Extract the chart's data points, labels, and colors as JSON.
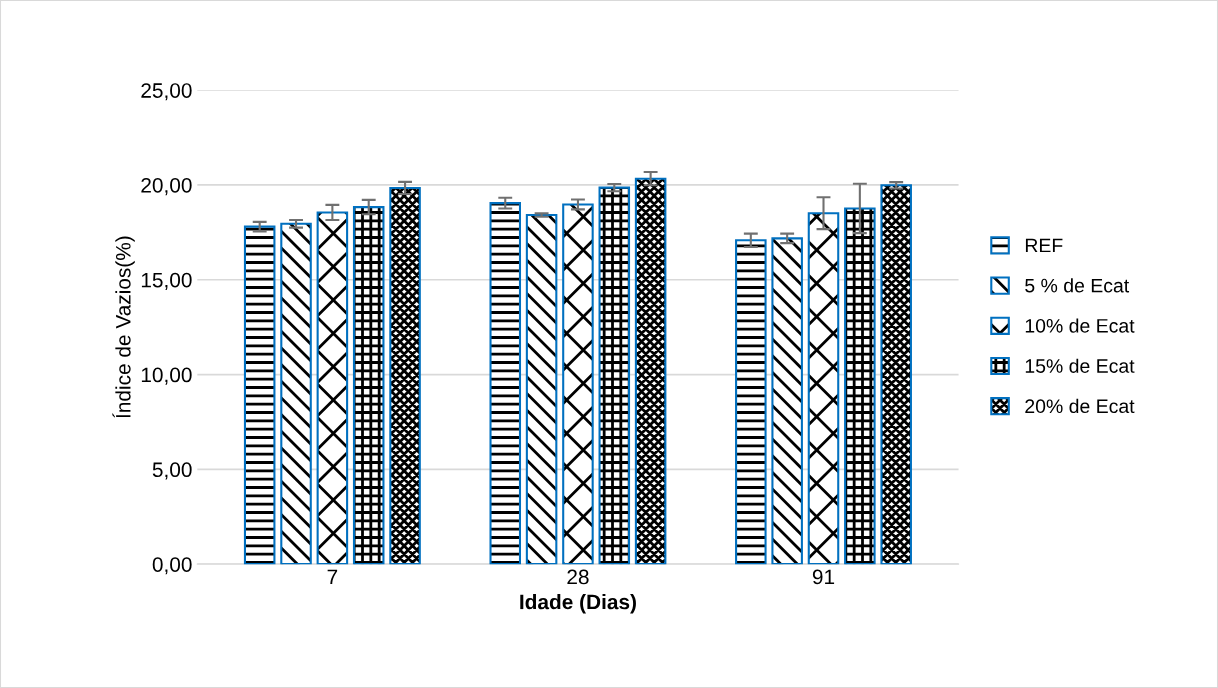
{
  "chart_data": {
    "type": "bar",
    "xlabel": "Idade (Dias)",
    "ylabel": "Índice de Vazios(%)",
    "categories": [
      "7",
      "28",
      "91"
    ],
    "series": [
      {
        "name": "REF",
        "color": "#0070c0",
        "values": [
          17.8,
          19.04,
          17.08
        ],
        "errors": [
          0.25,
          0.28,
          0.35
        ]
      },
      {
        "name": "5 % de Ecat",
        "color": "#0070c0",
        "values": [
          17.95,
          18.41,
          17.18
        ],
        "errors": [
          0.2,
          0.09,
          0.25
        ]
      },
      {
        "name": "10% de Ecat",
        "color": "#0070c0",
        "values": [
          18.55,
          18.97,
          18.51
        ],
        "errors": [
          0.4,
          0.26,
          0.84
        ]
      },
      {
        "name": "15% de Ecat",
        "color": "#0070c0",
        "values": [
          18.83,
          19.86,
          18.76
        ],
        "errors": [
          0.38,
          0.19,
          1.3
        ]
      },
      {
        "name": "20% de Ecat",
        "color": "#0070c0",
        "values": [
          19.84,
          20.33,
          19.98
        ],
        "errors": [
          0.32,
          0.35,
          0.17
        ]
      }
    ],
    "ylim": [
      0,
      25
    ],
    "yticks": [
      {
        "value": 0,
        "label": "0,00"
      },
      {
        "value": 5,
        "label": "5,00"
      },
      {
        "value": 10,
        "label": "10,00"
      },
      {
        "value": 15,
        "label": "15,00"
      },
      {
        "value": 20,
        "label": "20,00"
      },
      {
        "value": 25,
        "label": "25,00"
      }
    ],
    "grid": "y",
    "legend": "right"
  }
}
